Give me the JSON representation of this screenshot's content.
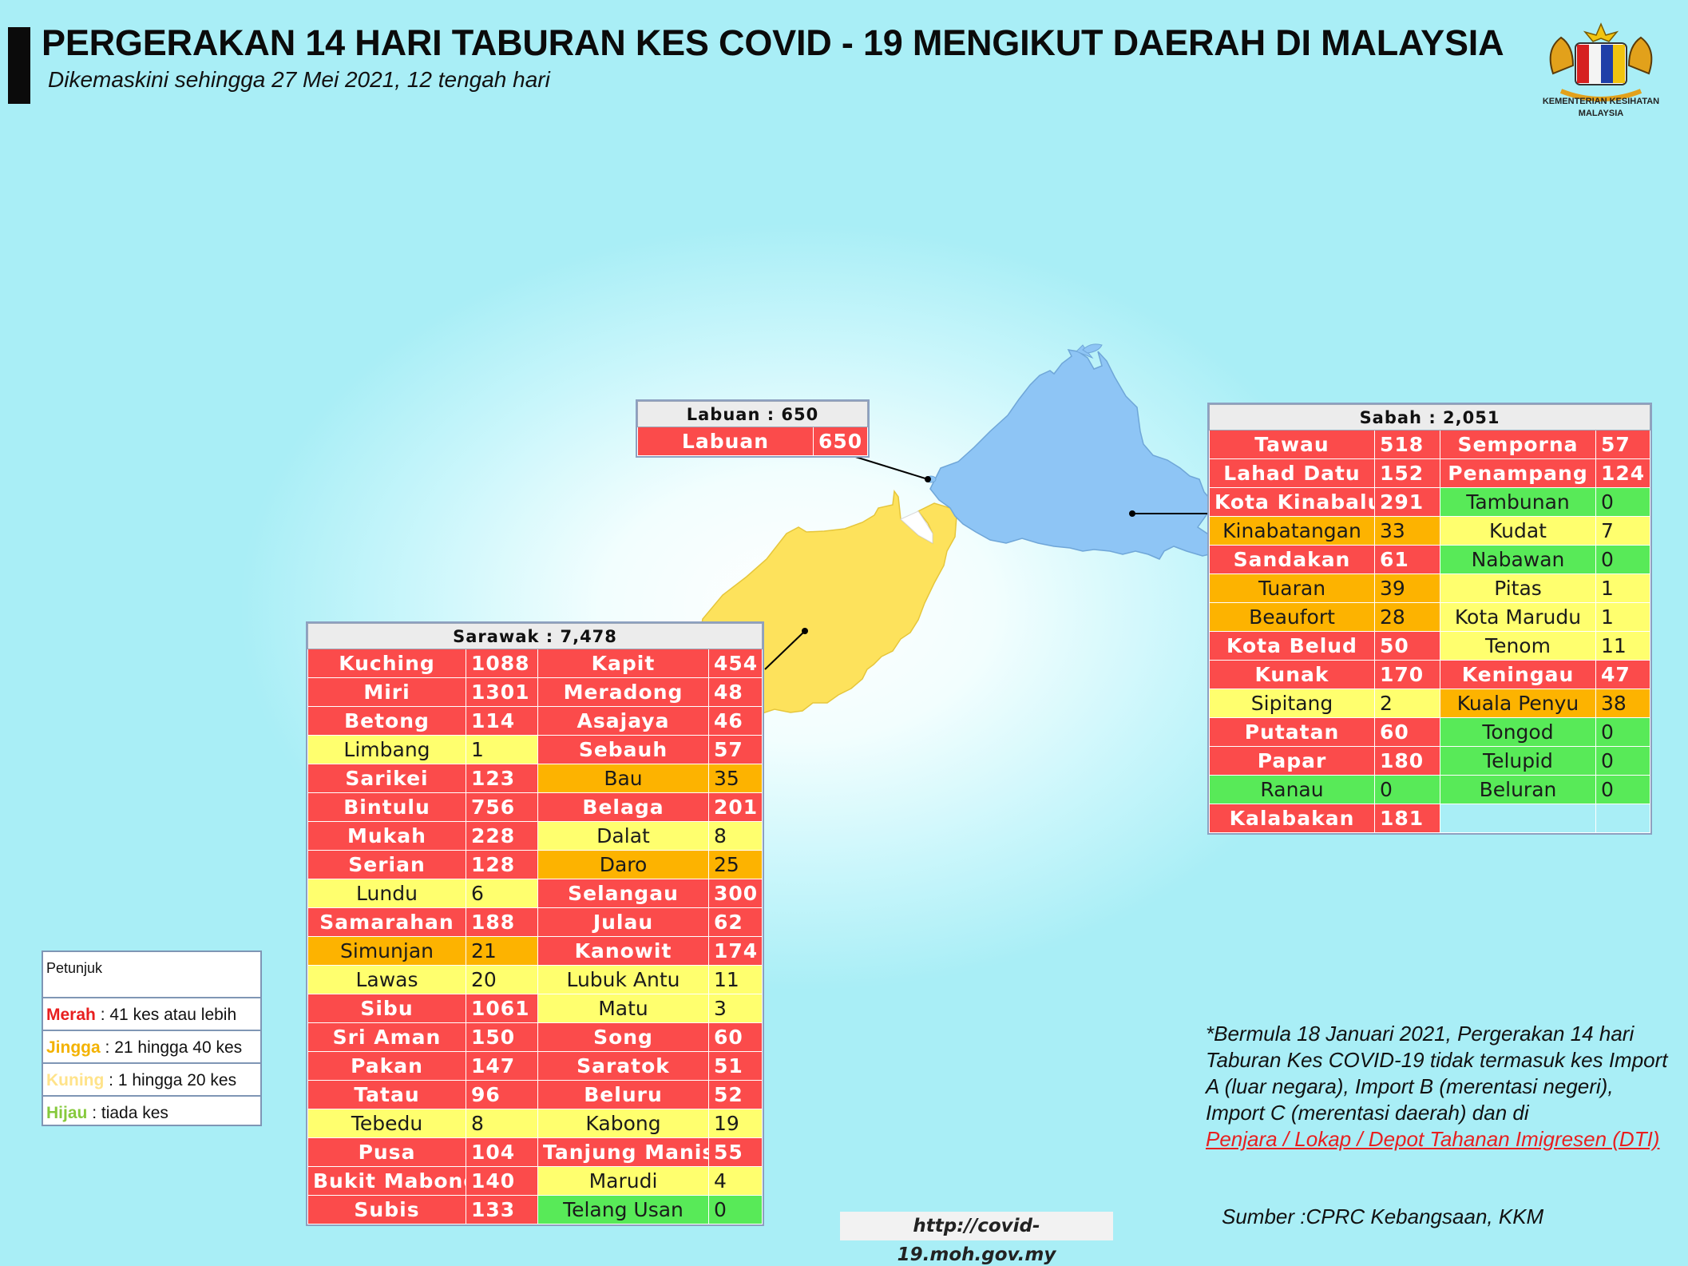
{
  "title": "PERGERAKAN 14 HARI TABURAN KES COVID - 19 MENGIKUT DAERAH DI MALAYSIA",
  "subtitle": "Dikemaskini sehingga 27 Mei 2021, 12 tengah hari",
  "logo_text": [
    "KEMENTERIAN KESIHATAN",
    "MALAYSIA"
  ],
  "colors": {
    "merah": "#fb4b4b",
    "jingga": "#fdb300",
    "kuning": "#ffff6e",
    "hijau": "#58ea58",
    "sabah_map": "#8ec5f5",
    "sarawak_map": "#fde25c"
  },
  "labuan": {
    "header": "Labuan : 650",
    "rows": [
      {
        "name": "Labuan",
        "value": "650",
        "level": "r"
      }
    ]
  },
  "sabah": {
    "header": "Sabah : 2,051",
    "rows": [
      [
        {
          "name": "Tawau",
          "value": "518",
          "level": "r"
        },
        {
          "name": "Semporna",
          "value": "57",
          "level": "r"
        }
      ],
      [
        {
          "name": "Lahad Datu",
          "value": "152",
          "level": "r"
        },
        {
          "name": "Penampang",
          "value": "124",
          "level": "r"
        }
      ],
      [
        {
          "name": "Kota Kinabalu",
          "value": "291",
          "level": "r"
        },
        {
          "name": "Tambunan",
          "value": "0",
          "level": "g"
        }
      ],
      [
        {
          "name": "Kinabatangan",
          "value": "33",
          "level": "o"
        },
        {
          "name": "Kudat",
          "value": "7",
          "level": "y"
        }
      ],
      [
        {
          "name": "Sandakan",
          "value": "61",
          "level": "r"
        },
        {
          "name": "Nabawan",
          "value": "0",
          "level": "g"
        }
      ],
      [
        {
          "name": "Tuaran",
          "value": "39",
          "level": "o"
        },
        {
          "name": "Pitas",
          "value": "1",
          "level": "y"
        }
      ],
      [
        {
          "name": "Beaufort",
          "value": "28",
          "level": "o"
        },
        {
          "name": "Kota Marudu",
          "value": "1",
          "level": "y"
        }
      ],
      [
        {
          "name": "Kota Belud",
          "value": "50",
          "level": "r"
        },
        {
          "name": "Tenom",
          "value": "11",
          "level": "y"
        }
      ],
      [
        {
          "name": "Kunak",
          "value": "170",
          "level": "r"
        },
        {
          "name": "Keningau",
          "value": "47",
          "level": "r"
        }
      ],
      [
        {
          "name": "Sipitang",
          "value": "2",
          "level": "y"
        },
        {
          "name": "Kuala Penyu",
          "value": "38",
          "level": "o"
        }
      ],
      [
        {
          "name": "Putatan",
          "value": "60",
          "level": "r"
        },
        {
          "name": "Tongod",
          "value": "0",
          "level": "g"
        }
      ],
      [
        {
          "name": "Papar",
          "value": "180",
          "level": "r"
        },
        {
          "name": "Telupid",
          "value": "0",
          "level": "g"
        }
      ],
      [
        {
          "name": "Ranau",
          "value": "0",
          "level": "g"
        },
        {
          "name": "Beluran",
          "value": "0",
          "level": "g"
        }
      ],
      [
        {
          "name": "Kalabakan",
          "value": "181",
          "level": "r"
        },
        {
          "name": "",
          "value": "",
          "level": "e"
        }
      ]
    ]
  },
  "sarawak": {
    "header": "Sarawak : 7,478",
    "rows": [
      [
        {
          "name": "Kuching",
          "value": "1088",
          "level": "r"
        },
        {
          "name": "Kapit",
          "value": "454",
          "level": "r"
        }
      ],
      [
        {
          "name": "Miri",
          "value": "1301",
          "level": "r"
        },
        {
          "name": "Meradong",
          "value": "48",
          "level": "r"
        }
      ],
      [
        {
          "name": "Betong",
          "value": "114",
          "level": "r"
        },
        {
          "name": "Asajaya",
          "value": "46",
          "level": "r"
        }
      ],
      [
        {
          "name": "Limbang",
          "value": "1",
          "level": "y"
        },
        {
          "name": "Sebauh",
          "value": "57",
          "level": "r"
        }
      ],
      [
        {
          "name": "Sarikei",
          "value": "123",
          "level": "r"
        },
        {
          "name": "Bau",
          "value": "35",
          "level": "o"
        }
      ],
      [
        {
          "name": "Bintulu",
          "value": "756",
          "level": "r"
        },
        {
          "name": "Belaga",
          "value": "201",
          "level": "r"
        }
      ],
      [
        {
          "name": "Mukah",
          "value": "228",
          "level": "r"
        },
        {
          "name": "Dalat",
          "value": "8",
          "level": "y"
        }
      ],
      [
        {
          "name": "Serian",
          "value": "128",
          "level": "r"
        },
        {
          "name": "Daro",
          "value": "25",
          "level": "o"
        }
      ],
      [
        {
          "name": "Lundu",
          "value": "6",
          "level": "y"
        },
        {
          "name": "Selangau",
          "value": "300",
          "level": "r"
        }
      ],
      [
        {
          "name": "Samarahan",
          "value": "188",
          "level": "r"
        },
        {
          "name": "Julau",
          "value": "62",
          "level": "r"
        }
      ],
      [
        {
          "name": "Simunjan",
          "value": "21",
          "level": "o"
        },
        {
          "name": "Kanowit",
          "value": "174",
          "level": "r"
        }
      ],
      [
        {
          "name": "Lawas",
          "value": "20",
          "level": "y"
        },
        {
          "name": "Lubuk Antu",
          "value": "11",
          "level": "y"
        }
      ],
      [
        {
          "name": "Sibu",
          "value": "1061",
          "level": "r"
        },
        {
          "name": "Matu",
          "value": "3",
          "level": "y"
        }
      ],
      [
        {
          "name": "Sri Aman",
          "value": "150",
          "level": "r"
        },
        {
          "name": "Song",
          "value": "60",
          "level": "r"
        }
      ],
      [
        {
          "name": "Pakan",
          "value": "147",
          "level": "r"
        },
        {
          "name": "Saratok",
          "value": "51",
          "level": "r"
        }
      ],
      [
        {
          "name": "Tatau",
          "value": "96",
          "level": "r"
        },
        {
          "name": "Beluru",
          "value": "52",
          "level": "r"
        }
      ],
      [
        {
          "name": "Tebedu",
          "value": "8",
          "level": "y"
        },
        {
          "name": "Kabong",
          "value": "19",
          "level": "y"
        }
      ],
      [
        {
          "name": "Pusa",
          "value": "104",
          "level": "r"
        },
        {
          "name": "Tanjung Manis",
          "value": "55",
          "level": "r"
        }
      ],
      [
        {
          "name": "Bukit Mabong",
          "value": "140",
          "level": "r"
        },
        {
          "name": "Marudi",
          "value": "4",
          "level": "y"
        }
      ],
      [
        {
          "name": "Subis",
          "value": "133",
          "level": "r"
        },
        {
          "name": "Telang Usan",
          "value": "0",
          "level": "g"
        }
      ]
    ]
  },
  "legend": {
    "title": "Petunjuk",
    "items": [
      {
        "key": "Merah",
        "text": ": 41 kes atau lebih"
      },
      {
        "key": "Jingga",
        "text": ": 21 hingga 40 kes"
      },
      {
        "key": "Kuning",
        "text": ": 1 hingga 20 kes"
      },
      {
        "key": "Hijau",
        "text": ": tiada kes"
      }
    ]
  },
  "note": {
    "text": "*Bermula 18 Januari 2021, Pergerakan 14 hari Taburan Kes COVID-19 tidak termasuk kes Import A (luar negara), Import B (merentasi negeri), Import C (merentasi daerah) dan di",
    "link": "Penjara / Lokap / Depot Tahanan Imigresen (DTI)"
  },
  "source": "Sumber :CPRC Kebangsaan,  KKM",
  "url": "http://covid-19.moh.gov.my"
}
